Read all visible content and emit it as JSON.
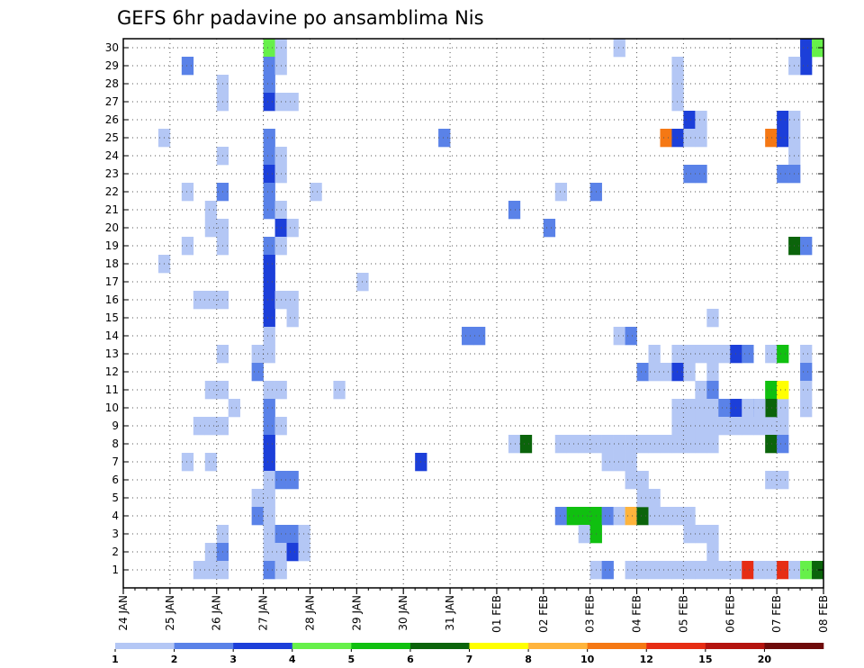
{
  "chart_data": {
    "type": "heatmap",
    "title": "GEFS 6hr padavine po ansamblima Nis",
    "y_labels": [
      "1",
      "2",
      "3",
      "4",
      "5",
      "6",
      "7",
      "8",
      "9",
      "10",
      "11",
      "12",
      "13",
      "14",
      "15",
      "16",
      "17",
      "18",
      "19",
      "20",
      "21",
      "22",
      "23",
      "24",
      "25",
      "26",
      "27",
      "28",
      "29",
      "30"
    ],
    "ylim": [
      0,
      30.5
    ],
    "x_labels": [
      "24 JAN",
      "25 JAN",
      "26 JAN",
      "27 JAN",
      "28 JAN",
      "29 JAN",
      "30 JAN",
      "31 JAN",
      "01 FEB",
      "02 FEB",
      "03 FEB",
      "04 FEB",
      "05 FEB",
      "06 FEB",
      "07 FEB",
      "08 FEB"
    ],
    "x_steps_per_day": 4,
    "colorbar": {
      "labels": [
        "1",
        "2",
        "3",
        "4",
        "5",
        "6",
        "7",
        "8",
        "10",
        "12",
        "15",
        "20"
      ],
      "colors": [
        "#b4c7f5",
        "#5a82e8",
        "#1c3fd9",
        "#66f04a",
        "#10c010",
        "#0b640b",
        "#ffff00",
        "#ffb43c",
        "#f57814",
        "#e62d14",
        "#b4140f",
        "#6e0a0a"
      ]
    },
    "cells": [
      [
        30,
        12,
        3
      ],
      [
        30,
        13,
        0
      ],
      [
        29,
        5,
        1
      ],
      [
        29,
        12,
        1
      ],
      [
        29,
        13,
        0
      ],
      [
        28,
        8,
        0
      ],
      [
        28,
        12,
        1
      ],
      [
        27,
        8,
        0
      ],
      [
        27,
        12,
        2
      ],
      [
        27,
        13,
        0
      ],
      [
        27,
        14,
        0
      ],
      [
        25,
        3,
        0
      ],
      [
        25,
        12,
        1
      ],
      [
        25,
        27,
        1
      ],
      [
        24,
        8,
        0
      ],
      [
        24,
        12,
        1
      ],
      [
        24,
        13,
        0
      ],
      [
        23,
        12,
        2
      ],
      [
        23,
        13,
        0
      ],
      [
        22,
        5,
        0
      ],
      [
        22,
        8,
        1
      ],
      [
        22,
        12,
        1
      ],
      [
        22,
        16,
        0
      ],
      [
        21,
        7,
        0
      ],
      [
        21,
        12,
        1
      ],
      [
        21,
        13,
        0
      ],
      [
        21,
        33,
        1
      ],
      [
        20,
        7,
        0
      ],
      [
        20,
        8,
        0
      ],
      [
        20,
        13,
        2
      ],
      [
        20,
        14,
        0
      ],
      [
        19,
        5,
        0
      ],
      [
        19,
        8,
        0
      ],
      [
        19,
        12,
        1
      ],
      [
        19,
        13,
        0
      ],
      [
        18,
        3,
        0
      ],
      [
        18,
        12,
        2
      ],
      [
        17,
        12,
        2
      ],
      [
        17,
        20,
        0
      ],
      [
        16,
        6,
        0
      ],
      [
        16,
        7,
        0
      ],
      [
        16,
        8,
        0
      ],
      [
        16,
        12,
        2
      ],
      [
        16,
        13,
        0
      ],
      [
        16,
        14,
        0
      ],
      [
        15,
        12,
        2
      ],
      [
        15,
        14,
        0
      ],
      [
        14,
        12,
        0
      ],
      [
        14,
        29,
        1
      ],
      [
        14,
        30,
        1
      ],
      [
        13,
        8,
        0
      ],
      [
        13,
        11,
        0
      ],
      [
        13,
        12,
        0
      ],
      [
        12,
        11,
        1
      ],
      [
        11,
        7,
        0
      ],
      [
        11,
        8,
        0
      ],
      [
        11,
        12,
        0
      ],
      [
        11,
        13,
        0
      ],
      [
        11,
        18,
        0
      ],
      [
        10,
        9,
        0
      ],
      [
        10,
        12,
        1
      ],
      [
        9,
        6,
        0
      ],
      [
        9,
        7,
        0
      ],
      [
        9,
        8,
        0
      ],
      [
        9,
        12,
        1
      ],
      [
        9,
        13,
        0
      ],
      [
        8,
        12,
        2
      ],
      [
        8,
        33,
        0
      ],
      [
        8,
        34,
        5
      ],
      [
        7,
        5,
        0
      ],
      [
        7,
        7,
        0
      ],
      [
        7,
        12,
        2
      ],
      [
        7,
        25,
        2
      ],
      [
        6,
        12,
        0
      ],
      [
        6,
        13,
        1
      ],
      [
        6,
        14,
        1
      ],
      [
        5,
        11,
        0
      ],
      [
        5,
        12,
        0
      ],
      [
        4,
        11,
        1
      ],
      [
        4,
        12,
        0
      ],
      [
        4,
        37,
        1
      ],
      [
        4,
        38,
        4
      ],
      [
        4,
        39,
        4
      ],
      [
        4,
        40,
        4
      ],
      [
        4,
        41,
        1
      ],
      [
        4,
        42,
        0
      ],
      [
        4,
        43,
        7
      ],
      [
        4,
        44,
        5
      ],
      [
        3,
        8,
        0
      ],
      [
        3,
        12,
        0
      ],
      [
        3,
        13,
        1
      ],
      [
        3,
        14,
        1
      ],
      [
        3,
        15,
        0
      ],
      [
        3,
        39,
        0
      ],
      [
        3,
        40,
        4
      ],
      [
        2,
        7,
        0
      ],
      [
        2,
        8,
        1
      ],
      [
        2,
        12,
        0
      ],
      [
        2,
        13,
        0
      ],
      [
        2,
        14,
        2
      ],
      [
        2,
        15,
        0
      ],
      [
        1,
        6,
        0
      ],
      [
        1,
        7,
        0
      ],
      [
        1,
        8,
        0
      ],
      [
        1,
        12,
        1
      ],
      [
        1,
        13,
        0
      ],
      [
        1,
        40,
        0
      ],
      [
        1,
        41,
        1
      ],
      [
        30,
        42,
        0
      ],
      [
        29,
        47,
        0
      ],
      [
        28,
        47,
        0
      ],
      [
        27,
        47,
        0
      ],
      [
        26,
        48,
        2
      ],
      [
        26,
        49,
        0
      ],
      [
        25,
        46,
        8
      ],
      [
        25,
        47,
        2
      ],
      [
        25,
        48,
        0
      ],
      [
        25,
        49,
        0
      ],
      [
        23,
        48,
        1
      ],
      [
        23,
        49,
        1
      ],
      [
        22,
        37,
        0
      ],
      [
        22,
        40,
        1
      ],
      [
        20,
        36,
        1
      ],
      [
        15,
        50,
        0
      ],
      [
        14,
        42,
        0
      ],
      [
        14,
        43,
        1
      ],
      [
        13,
        45,
        0
      ],
      [
        13,
        47,
        0
      ],
      [
        13,
        48,
        0
      ],
      [
        13,
        49,
        0
      ],
      [
        13,
        50,
        0
      ],
      [
        13,
        51,
        0
      ],
      [
        13,
        52,
        2
      ],
      [
        13,
        53,
        1
      ],
      [
        12,
        44,
        1
      ],
      [
        12,
        45,
        0
      ],
      [
        12,
        46,
        0
      ],
      [
        12,
        47,
        2
      ],
      [
        12,
        48,
        0
      ],
      [
        12,
        50,
        0
      ],
      [
        11,
        49,
        0
      ],
      [
        11,
        50,
        1
      ],
      [
        10,
        47,
        0
      ],
      [
        10,
        48,
        0
      ],
      [
        10,
        49,
        0
      ],
      [
        10,
        50,
        0
      ],
      [
        10,
        51,
        1
      ],
      [
        10,
        52,
        2
      ],
      [
        10,
        53,
        0
      ],
      [
        10,
        54,
        1
      ],
      [
        10,
        55,
        0
      ],
      [
        10,
        56,
        0
      ],
      [
        10,
        58,
        0
      ],
      [
        9,
        47,
        0
      ],
      [
        9,
        48,
        0
      ],
      [
        9,
        49,
        0
      ],
      [
        9,
        50,
        0
      ],
      [
        9,
        51,
        0
      ],
      [
        9,
        52,
        0
      ],
      [
        9,
        53,
        0
      ],
      [
        9,
        54,
        0
      ],
      [
        9,
        55,
        0
      ],
      [
        9,
        56,
        0
      ],
      [
        8,
        37,
        0
      ],
      [
        8,
        38,
        0
      ],
      [
        8,
        39,
        0
      ],
      [
        8,
        40,
        0
      ],
      [
        8,
        41,
        0
      ],
      [
        8,
        42,
        0
      ],
      [
        8,
        43,
        0
      ],
      [
        8,
        44,
        0
      ],
      [
        8,
        45,
        0
      ],
      [
        8,
        46,
        0
      ],
      [
        8,
        47,
        0
      ],
      [
        8,
        48,
        0
      ],
      [
        8,
        49,
        0
      ],
      [
        8,
        50,
        0
      ],
      [
        7,
        41,
        0
      ],
      [
        7,
        42,
        0
      ],
      [
        7,
        43,
        0
      ],
      [
        6,
        43,
        0
      ],
      [
        6,
        44,
        0
      ],
      [
        5,
        44,
        0
      ],
      [
        5,
        45,
        0
      ],
      [
        4,
        45,
        0
      ],
      [
        4,
        46,
        0
      ],
      [
        4,
        47,
        0
      ],
      [
        4,
        48,
        0
      ],
      [
        3,
        48,
        0
      ],
      [
        3,
        49,
        0
      ],
      [
        3,
        50,
        0
      ],
      [
        2,
        50,
        0
      ],
      [
        1,
        50,
        0
      ],
      [
        30,
        58,
        2
      ],
      [
        30,
        59,
        3
      ],
      [
        30,
        60,
        0
      ],
      [
        29,
        58,
        2
      ],
      [
        29,
        57,
        0
      ],
      [
        26,
        56,
        2
      ],
      [
        26,
        57,
        0
      ],
      [
        25,
        55,
        8
      ],
      [
        25,
        56,
        2
      ],
      [
        25,
        57,
        0
      ],
      [
        24,
        57,
        0
      ],
      [
        23,
        56,
        1
      ],
      [
        23,
        57,
        1
      ],
      [
        22,
        60,
        1
      ],
      [
        22,
        61,
        2
      ],
      [
        21,
        63,
        6
      ],
      [
        21,
        64,
        1
      ],
      [
        21,
        65,
        3
      ],
      [
        21,
        66,
        9
      ],
      [
        21,
        67,
        1
      ],
      [
        21,
        68,
        2
      ],
      [
        21,
        69,
        3
      ],
      [
        20,
        62,
        0
      ],
      [
        20,
        63,
        9
      ],
      [
        20,
        64,
        0
      ],
      [
        20,
        66,
        0
      ],
      [
        19,
        57,
        5
      ],
      [
        19,
        58,
        1
      ],
      [
        19,
        60,
        0
      ],
      [
        19,
        61,
        3
      ],
      [
        19,
        62,
        2
      ],
      [
        19,
        63,
        1
      ],
      [
        16,
        66,
        0
      ],
      [
        16,
        67,
        7
      ],
      [
        15,
        65,
        0
      ],
      [
        15,
        68,
        0
      ],
      [
        13,
        55,
        0
      ],
      [
        13,
        56,
        4
      ],
      [
        13,
        58,
        0
      ],
      [
        13,
        66,
        0
      ],
      [
        12,
        58,
        1
      ],
      [
        11,
        55,
        4
      ],
      [
        11,
        56,
        6
      ],
      [
        11,
        58,
        0
      ],
      [
        11,
        61,
        6
      ],
      [
        11,
        67,
        2
      ],
      [
        11,
        68,
        2
      ],
      [
        10,
        55,
        5
      ],
      [
        10,
        54,
        0
      ],
      [
        9,
        60,
        2
      ],
      [
        8,
        55,
        5
      ],
      [
        8,
        56,
        1
      ],
      [
        8,
        61,
        0
      ],
      [
        8,
        62,
        0
      ],
      [
        7,
        66,
        0
      ],
      [
        6,
        55,
        0
      ],
      [
        6,
        56,
        0
      ],
      [
        5,
        67,
        3
      ],
      [
        5,
        68,
        4
      ],
      [
        4,
        63,
        0
      ],
      [
        4,
        64,
        3
      ],
      [
        4,
        65,
        0
      ],
      [
        4,
        66,
        2
      ],
      [
        4,
        67,
        4
      ],
      [
        4,
        68,
        5
      ],
      [
        4,
        69,
        9
      ],
      [
        3,
        61,
        0
      ],
      [
        3,
        62,
        0
      ],
      [
        2,
        60,
        5
      ],
      [
        1,
        55,
        0
      ],
      [
        1,
        56,
        9
      ],
      [
        1,
        57,
        0
      ],
      [
        1,
        58,
        3
      ],
      [
        1,
        59,
        5
      ],
      [
        1,
        60,
        0
      ],
      [
        1,
        61,
        0
      ],
      [
        1,
        43,
        0
      ],
      [
        1,
        44,
        0
      ],
      [
        1,
        45,
        0
      ],
      [
        1,
        46,
        0
      ],
      [
        1,
        47,
        0
      ],
      [
        1,
        48,
        0
      ],
      [
        1,
        49,
        0
      ],
      [
        1,
        51,
        0
      ],
      [
        1,
        52,
        0
      ],
      [
        1,
        53,
        9
      ],
      [
        1,
        54,
        0
      ]
    ]
  }
}
